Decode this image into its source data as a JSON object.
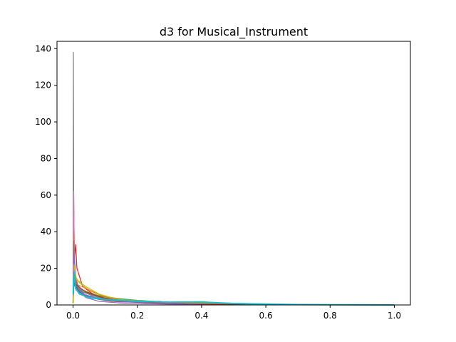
{
  "chart_data": {
    "type": "line",
    "title": "d3 for Musical_Instrument",
    "xlabel": "",
    "ylabel": "",
    "xlim": [
      -0.05,
      1.05
    ],
    "ylim": [
      0,
      144
    ],
    "grid": false,
    "legend": "none",
    "x_ticks": [
      0.0,
      0.2,
      0.4,
      0.6,
      0.8,
      1.0
    ],
    "x_tick_labels": [
      "0.0",
      "0.2",
      "0.4",
      "0.6",
      "0.8",
      "1.0"
    ],
    "y_ticks": [
      0,
      20,
      40,
      60,
      80,
      100,
      120,
      140
    ],
    "y_tick_labels": [
      "0",
      "20",
      "40",
      "60",
      "80",
      "100",
      "120",
      "140"
    ],
    "series": [
      {
        "color": "#7f7f7f",
        "points": [
          [
            0,
            2
          ],
          [
            0.001,
            138
          ],
          [
            0.002,
            60
          ],
          [
            0.004,
            20
          ],
          [
            0.01,
            8
          ],
          [
            0.05,
            4
          ],
          [
            0.1,
            3
          ],
          [
            0.2,
            1.5
          ],
          [
            0.4,
            0.8
          ],
          [
            0.6,
            0.3
          ],
          [
            0.8,
            0.1
          ],
          [
            1.0,
            0.05
          ]
        ]
      },
      {
        "color": "#17becf",
        "points": [
          [
            0,
            3
          ],
          [
            0.002,
            27
          ],
          [
            0.005,
            14
          ],
          [
            0.02,
            8
          ],
          [
            0.08,
            4
          ],
          [
            0.15,
            2.5
          ],
          [
            0.25,
            1.8
          ],
          [
            0.3,
            1.5
          ],
          [
            0.35,
            1.6
          ],
          [
            0.4,
            1.5
          ],
          [
            0.5,
            0.8
          ],
          [
            0.6,
            0.4
          ],
          [
            0.8,
            0.1
          ],
          [
            1.0,
            0.05
          ]
        ]
      },
      {
        "color": "#1f77b4",
        "points": [
          [
            0,
            1
          ],
          [
            0.002,
            22
          ],
          [
            0.006,
            12
          ],
          [
            0.02,
            6
          ],
          [
            0.05,
            4
          ],
          [
            0.1,
            2.5
          ],
          [
            0.2,
            1.5
          ],
          [
            0.4,
            0.6
          ],
          [
            0.6,
            0.2
          ],
          [
            0.8,
            0.05
          ],
          [
            1.0,
            0.02
          ]
        ]
      },
      {
        "color": "#ff7f0e",
        "points": [
          [
            0,
            1
          ],
          [
            0.002,
            30
          ],
          [
            0.006,
            14
          ],
          [
            0.02,
            9
          ],
          [
            0.06,
            6
          ],
          [
            0.12,
            3
          ],
          [
            0.2,
            1.8
          ],
          [
            0.4,
            0.7
          ],
          [
            0.6,
            0.2
          ],
          [
            0.8,
            0.05
          ],
          [
            1.0,
            0.02
          ]
        ]
      },
      {
        "color": "#2ca02c",
        "points": [
          [
            0,
            1
          ],
          [
            0.002,
            18
          ],
          [
            0.006,
            11
          ],
          [
            0.03,
            8
          ],
          [
            0.08,
            5
          ],
          [
            0.15,
            3
          ],
          [
            0.25,
            1.5
          ],
          [
            0.4,
            0.8
          ],
          [
            0.6,
            0.3
          ],
          [
            0.8,
            0.08
          ],
          [
            1.0,
            0.02
          ]
        ]
      },
      {
        "color": "#d62728",
        "points": [
          [
            0,
            1
          ],
          [
            0.004,
            25
          ],
          [
            0.008,
            33
          ],
          [
            0.012,
            20
          ],
          [
            0.03,
            10
          ],
          [
            0.07,
            5
          ],
          [
            0.12,
            3
          ],
          [
            0.2,
            1.5
          ],
          [
            0.4,
            0.5
          ],
          [
            0.6,
            0.2
          ],
          [
            0.8,
            0.05
          ],
          [
            1.0,
            0.02
          ]
        ]
      },
      {
        "color": "#9467bd",
        "points": [
          [
            0,
            1
          ],
          [
            0.002,
            54
          ],
          [
            0.005,
            20
          ],
          [
            0.015,
            8
          ],
          [
            0.04,
            4
          ],
          [
            0.08,
            2
          ],
          [
            0.15,
            1
          ],
          [
            0.3,
            0.5
          ],
          [
            0.5,
            0.2
          ],
          [
            0.8,
            0.05
          ],
          [
            1.0,
            0.02
          ]
        ]
      },
      {
        "color": "#8c564b",
        "points": [
          [
            0,
            1
          ],
          [
            0.002,
            15
          ],
          [
            0.008,
            10
          ],
          [
            0.03,
            7
          ],
          [
            0.07,
            5
          ],
          [
            0.12,
            3
          ],
          [
            0.2,
            2
          ],
          [
            0.35,
            1
          ],
          [
            0.5,
            0.5
          ],
          [
            0.7,
            0.2
          ],
          [
            1.0,
            0.03
          ]
        ]
      },
      {
        "color": "#e377c2",
        "points": [
          [
            0,
            1
          ],
          [
            0.002,
            62
          ],
          [
            0.004,
            28
          ],
          [
            0.01,
            12
          ],
          [
            0.03,
            6
          ],
          [
            0.08,
            3
          ],
          [
            0.15,
            1.5
          ],
          [
            0.27,
            2
          ],
          [
            0.3,
            1
          ],
          [
            0.5,
            0.3
          ],
          [
            0.8,
            0.05
          ],
          [
            1.0,
            0.02
          ]
        ]
      },
      {
        "color": "#bcbd22",
        "points": [
          [
            0,
            1
          ],
          [
            0.002,
            28
          ],
          [
            0.006,
            16
          ],
          [
            0.02,
            12
          ],
          [
            0.05,
            8
          ],
          [
            0.1,
            4
          ],
          [
            0.2,
            2
          ],
          [
            0.3,
            1.2
          ],
          [
            0.5,
            0.5
          ],
          [
            0.7,
            0.2
          ],
          [
            1.0,
            0.03
          ]
        ]
      },
      {
        "color": "#1f77b4",
        "points": [
          [
            0,
            1
          ],
          [
            0.003,
            12
          ],
          [
            0.01,
            8
          ],
          [
            0.04,
            5
          ],
          [
            0.1,
            3
          ],
          [
            0.2,
            1.5
          ],
          [
            0.4,
            0.5
          ],
          [
            0.7,
            0.1
          ],
          [
            1.0,
            0.02
          ]
        ]
      },
      {
        "color": "#2ca02c",
        "points": [
          [
            0,
            1
          ],
          [
            0.003,
            20
          ],
          [
            0.01,
            10
          ],
          [
            0.03,
            7
          ],
          [
            0.08,
            5
          ],
          [
            0.14,
            3.5
          ],
          [
            0.2,
            2.5
          ],
          [
            0.3,
            1.5
          ],
          [
            0.5,
            0.6
          ],
          [
            0.8,
            0.1
          ],
          [
            1.0,
            0.02
          ]
        ]
      },
      {
        "color": "#ff7f0e",
        "points": [
          [
            0,
            1
          ],
          [
            0.002,
            40
          ],
          [
            0.005,
            18
          ],
          [
            0.015,
            11
          ],
          [
            0.04,
            9
          ],
          [
            0.09,
            5
          ],
          [
            0.15,
            3
          ],
          [
            0.25,
            1.5
          ],
          [
            0.45,
            0.6
          ],
          [
            0.7,
            0.15
          ],
          [
            1.0,
            0.02
          ]
        ]
      },
      {
        "color": "#17becf",
        "points": [
          [
            0,
            1
          ],
          [
            0.002,
            24
          ],
          [
            0.008,
            13
          ],
          [
            0.03,
            7
          ],
          [
            0.1,
            3
          ],
          [
            0.2,
            2.2
          ],
          [
            0.3,
            1.4
          ],
          [
            0.4,
            1.8
          ],
          [
            0.45,
            1.2
          ],
          [
            0.6,
            0.5
          ],
          [
            0.8,
            0.1
          ],
          [
            1.0,
            0.03
          ]
        ]
      },
      {
        "color": "#8c564b",
        "points": [
          [
            0,
            1
          ],
          [
            0.002,
            18
          ],
          [
            0.01,
            9
          ],
          [
            0.05,
            4
          ],
          [
            0.12,
            2
          ],
          [
            0.25,
            1
          ],
          [
            0.5,
            0.3
          ],
          [
            0.8,
            0.05
          ],
          [
            1.0,
            0.02
          ]
        ]
      },
      {
        "color": "#7f7f7f",
        "points": [
          [
            0,
            1
          ],
          [
            0.002,
            35
          ],
          [
            0.006,
            15
          ],
          [
            0.02,
            8
          ],
          [
            0.06,
            5
          ],
          [
            0.12,
            3
          ],
          [
            0.2,
            1.8
          ],
          [
            0.35,
            1
          ],
          [
            0.55,
            0.4
          ],
          [
            0.8,
            0.08
          ],
          [
            1.0,
            0.02
          ]
        ]
      },
      {
        "color": "#9467bd",
        "points": [
          [
            0,
            1
          ],
          [
            0.002,
            30
          ],
          [
            0.008,
            12
          ],
          [
            0.03,
            6
          ],
          [
            0.08,
            3.5
          ],
          [
            0.15,
            2
          ],
          [
            0.3,
            0.8
          ],
          [
            0.6,
            0.2
          ],
          [
            1.0,
            0.02
          ]
        ]
      },
      {
        "color": "#d62728",
        "points": [
          [
            0,
            1
          ],
          [
            0.003,
            16
          ],
          [
            0.01,
            11
          ],
          [
            0.04,
            7
          ],
          [
            0.09,
            4
          ],
          [
            0.15,
            2.5
          ],
          [
            0.25,
            1.4
          ],
          [
            0.45,
            0.5
          ],
          [
            0.7,
            0.1
          ],
          [
            1.0,
            0.02
          ]
        ]
      },
      {
        "color": "#bcbd22",
        "points": [
          [
            0,
            1
          ],
          [
            0.003,
            22
          ],
          [
            0.01,
            14
          ],
          [
            0.04,
            10
          ],
          [
            0.08,
            6
          ],
          [
            0.14,
            3
          ],
          [
            0.22,
            2
          ],
          [
            0.35,
            1.2
          ],
          [
            0.55,
            0.5
          ],
          [
            0.8,
            0.1
          ],
          [
            1.0,
            0.02
          ]
        ]
      },
      {
        "color": "#17becf",
        "points": [
          [
            0,
            6
          ],
          [
            0.0005,
            6
          ],
          [
            0.001,
            12
          ],
          [
            0.003,
            18
          ],
          [
            0.008,
            9
          ],
          [
            0.02,
            6
          ],
          [
            0.05,
            4
          ],
          [
            0.1,
            3
          ],
          [
            0.2,
            2
          ],
          [
            0.3,
            1.5
          ],
          [
            0.38,
            1.6
          ],
          [
            0.42,
            1.4
          ],
          [
            0.5,
            0.8
          ],
          [
            0.7,
            0.2
          ],
          [
            0.9,
            0.05
          ],
          [
            1.0,
            0.02
          ]
        ]
      }
    ]
  }
}
